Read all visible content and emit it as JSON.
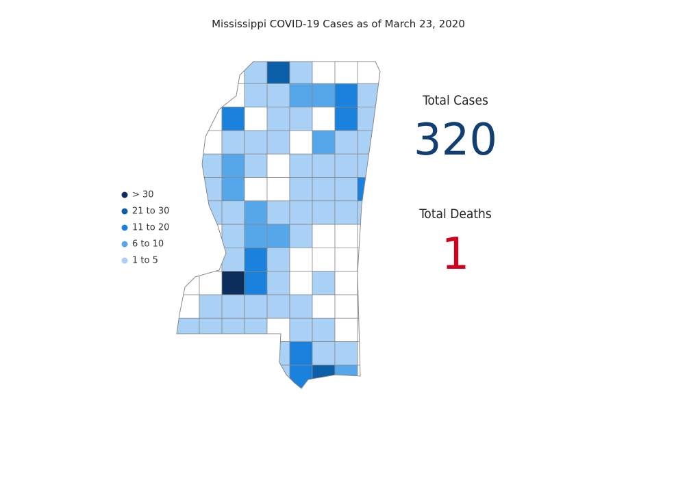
{
  "header": {
    "title": "Mississippi COVID-19 Cases as of March 23, 2020"
  },
  "legend": {
    "items": [
      {
        "label": "> 30",
        "color": "#0b2e5c"
      },
      {
        "label": "21 to 30",
        "color": "#0b5ea8"
      },
      {
        "label": "11 to 20",
        "color": "#1a82dd"
      },
      {
        "label": "6 to 10",
        "color": "#56a6ea"
      },
      {
        "label": "1 to 5",
        "color": "#a9d0f5"
      }
    ]
  },
  "stats": {
    "cases_label": "Total Cases",
    "cases": 320,
    "deaths_label": "Total Deaths",
    "deaths": 1
  }
}
